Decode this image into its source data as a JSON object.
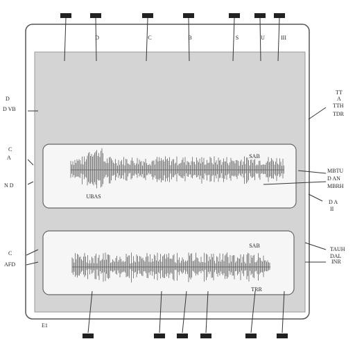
{
  "top_labels": [
    "D",
    "C",
    "B",
    "S",
    "U",
    "III"
  ],
  "left_labels": [
    "D",
    "D VB",
    "C",
    "A",
    "N D",
    "C",
    "AFD"
  ],
  "right_labels": [
    "TT",
    "A",
    "TTH",
    "TDR",
    "MBTU",
    "D AN",
    "MBRH",
    "D A",
    "II",
    "TAUH",
    "DAL",
    "INR"
  ],
  "panels": [
    {
      "labels": [
        "SAB",
        "UBAS"
      ]
    },
    {
      "labels": [
        "SAB",
        "TRR"
      ]
    }
  ],
  "footer": "E1"
}
